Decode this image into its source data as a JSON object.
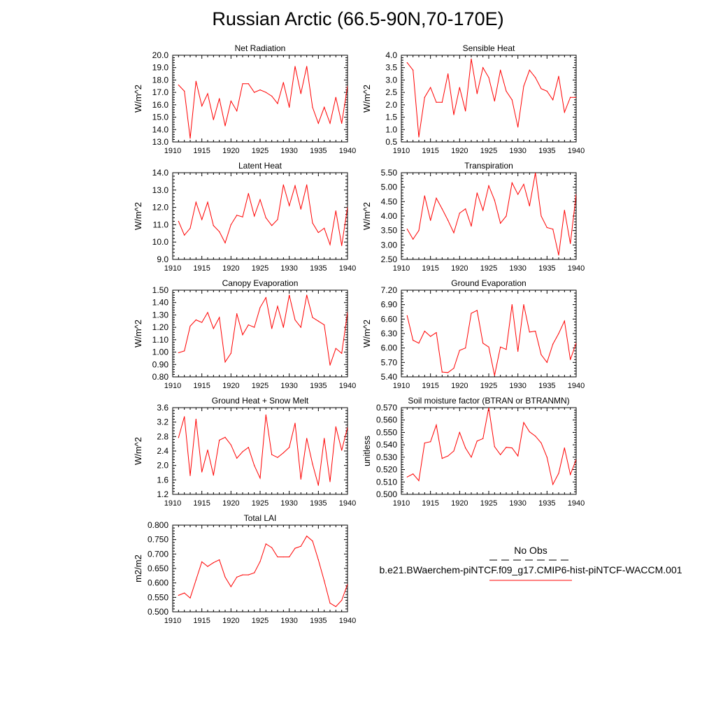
{
  "figure": {
    "title": "Russian Arctic (66.5-90N,70-170E)"
  },
  "legend": {
    "obs_label": "No Obs",
    "model_label": "b.e21.BWaerchem-piNTCF.f09_g17.CMIP6-hist-piNTCF-WACCM.001",
    "obs_color": "#000000",
    "model_color": "#ff0000"
  },
  "colors": {
    "series": "#ff0000",
    "axis": "#000000"
  },
  "chart_data": [
    {
      "type": "line",
      "title": "Net Radiation",
      "ylabel": "W/m^2",
      "xlim": [
        1910,
        1940
      ],
      "ylim": [
        13.0,
        20.0
      ],
      "xticks": [
        "1910",
        "1915",
        "1920",
        "1925",
        "1930",
        "1935",
        "1940"
      ],
      "yticks": [
        "13.0",
        "14.0",
        "15.0",
        "16.0",
        "17.0",
        "18.0",
        "19.0",
        "20.0"
      ],
      "grid": false,
      "x": [
        1911,
        1912,
        1913,
        1914,
        1915,
        1916,
        1917,
        1918,
        1919,
        1920,
        1921,
        1922,
        1923,
        1924,
        1925,
        1926,
        1927,
        1928,
        1929,
        1930,
        1931,
        1932,
        1933,
        1934,
        1935,
        1936,
        1937,
        1938,
        1939,
        1940
      ],
      "values": [
        17.6,
        17.1,
        13.3,
        17.9,
        15.9,
        16.9,
        14.8,
        16.5,
        14.3,
        16.3,
        15.5,
        17.7,
        17.7,
        17.0,
        17.2,
        17.0,
        16.7,
        16.1,
        17.8,
        15.8,
        19.1,
        16.9,
        19.1,
        15.8,
        14.5,
        15.8,
        14.5,
        16.6,
        14.5,
        17.5
      ]
    },
    {
      "type": "line",
      "title": "Sensible Heat",
      "ylabel": "W/m^2",
      "xlim": [
        1910,
        1940
      ],
      "ylim": [
        0.5,
        4.0
      ],
      "xticks": [
        "1910",
        "1915",
        "1920",
        "1925",
        "1930",
        "1935",
        "1940"
      ],
      "yticks": [
        "0.5",
        "1.0",
        "1.5",
        "2.0",
        "2.5",
        "3.0",
        "3.5",
        "4.0"
      ],
      "grid": false,
      "x": [
        1911,
        1912,
        1913,
        1914,
        1915,
        1916,
        1917,
        1918,
        1919,
        1920,
        1921,
        1922,
        1923,
        1924,
        1925,
        1926,
        1927,
        1928,
        1929,
        1930,
        1931,
        1932,
        1933,
        1934,
        1935,
        1936,
        1937,
        1938,
        1939,
        1940
      ],
      "values": [
        3.7,
        3.4,
        0.7,
        2.3,
        2.7,
        2.1,
        2.1,
        3.25,
        1.6,
        2.7,
        1.75,
        3.85,
        2.45,
        3.5,
        3.1,
        2.15,
        3.4,
        2.55,
        2.2,
        1.1,
        2.75,
        3.4,
        3.1,
        2.65,
        2.55,
        2.2,
        3.15,
        1.7,
        2.3,
        2.3
      ]
    },
    {
      "type": "line",
      "title": "Latent Heat",
      "ylabel": "W/m^2",
      "xlim": [
        1910,
        1940
      ],
      "ylim": [
        9.0,
        14.0
      ],
      "xticks": [
        "1910",
        "1915",
        "1920",
        "1925",
        "1930",
        "1935",
        "1940"
      ],
      "yticks": [
        "9.0",
        "10.0",
        "11.0",
        "12.0",
        "13.0",
        "14.0"
      ],
      "grid": false,
      "x": [
        1911,
        1912,
        1913,
        1914,
        1915,
        1916,
        1917,
        1918,
        1919,
        1920,
        1921,
        1922,
        1923,
        1924,
        1925,
        1926,
        1927,
        1928,
        1929,
        1930,
        1931,
        1932,
        1933,
        1934,
        1935,
        1936,
        1937,
        1938,
        1939,
        1940
      ],
      "values": [
        11.2,
        10.4,
        10.8,
        12.3,
        11.3,
        12.3,
        10.95,
        10.6,
        9.95,
        11.0,
        11.55,
        11.45,
        12.8,
        11.5,
        12.45,
        11.4,
        10.95,
        11.3,
        13.3,
        12.1,
        13.25,
        11.9,
        13.3,
        11.1,
        10.55,
        10.8,
        9.85,
        11.8,
        9.8,
        12.0
      ]
    },
    {
      "type": "line",
      "title": "Transpiration",
      "ylabel": "W/m^2",
      "xlim": [
        1910,
        1940
      ],
      "ylim": [
        2.5,
        5.5
      ],
      "xticks": [
        "1910",
        "1915",
        "1920",
        "1925",
        "1930",
        "1935",
        "1940"
      ],
      "yticks": [
        "2.50",
        "3.00",
        "3.50",
        "4.00",
        "4.50",
        "5.00",
        "5.50"
      ],
      "grid": false,
      "x": [
        1911,
        1912,
        1913,
        1914,
        1915,
        1916,
        1917,
        1918,
        1919,
        1920,
        1921,
        1922,
        1923,
        1924,
        1925,
        1926,
        1927,
        1928,
        1929,
        1930,
        1931,
        1932,
        1933,
        1934,
        1935,
        1936,
        1937,
        1938,
        1939,
        1940
      ],
      "values": [
        3.55,
        3.2,
        3.5,
        4.7,
        3.85,
        4.62,
        4.25,
        3.85,
        3.42,
        4.1,
        4.25,
        3.65,
        4.8,
        4.2,
        5.05,
        4.55,
        3.75,
        4.0,
        5.15,
        4.75,
        5.1,
        4.35,
        5.5,
        4.0,
        3.6,
        3.55,
        2.65,
        4.2,
        3.05,
        4.75
      ]
    },
    {
      "type": "line",
      "title": "Canopy Evaporation",
      "ylabel": "W/m^2",
      "xlim": [
        1910,
        1940
      ],
      "ylim": [
        0.8,
        1.5
      ],
      "xticks": [
        "1910",
        "1915",
        "1920",
        "1925",
        "1930",
        "1935",
        "1940"
      ],
      "yticks": [
        "0.80",
        "0.90",
        "1.00",
        "1.10",
        "1.20",
        "1.30",
        "1.40",
        "1.50"
      ],
      "grid": false,
      "x": [
        1911,
        1912,
        1913,
        1914,
        1915,
        1916,
        1917,
        1918,
        1919,
        1920,
        1921,
        1922,
        1923,
        1924,
        1925,
        1926,
        1927,
        1928,
        1929,
        1930,
        1931,
        1932,
        1933,
        1934,
        1935,
        1936,
        1937,
        1938,
        1939,
        1940
      ],
      "values": [
        0.995,
        1.01,
        1.21,
        1.26,
        1.24,
        1.32,
        1.19,
        1.28,
        0.92,
        0.99,
        1.31,
        1.14,
        1.22,
        1.2,
        1.36,
        1.44,
        1.19,
        1.37,
        1.2,
        1.46,
        1.26,
        1.2,
        1.46,
        1.28,
        1.25,
        1.22,
        0.895,
        1.03,
        0.99,
        1.32
      ]
    },
    {
      "type": "line",
      "title": "Ground Evaporation",
      "ylabel": "W/m^2",
      "xlim": [
        1910,
        1940
      ],
      "ylim": [
        5.4,
        7.2
      ],
      "xticks": [
        "1910",
        "1915",
        "1920",
        "1925",
        "1930",
        "1935",
        "1940"
      ],
      "yticks": [
        "5.40",
        "5.70",
        "6.00",
        "6.30",
        "6.60",
        "6.90",
        "7.20"
      ],
      "grid": false,
      "x": [
        1911,
        1912,
        1913,
        1914,
        1915,
        1916,
        1917,
        1918,
        1919,
        1920,
        1921,
        1922,
        1923,
        1924,
        1925,
        1926,
        1927,
        1928,
        1929,
        1930,
        1931,
        1932,
        1933,
        1934,
        1935,
        1936,
        1937,
        1938,
        1939,
        1940
      ],
      "values": [
        6.67,
        6.16,
        6.1,
        6.35,
        6.24,
        6.32,
        5.5,
        5.49,
        5.58,
        5.95,
        6.0,
        6.72,
        6.78,
        6.1,
        6.02,
        5.43,
        6.02,
        5.97,
        6.9,
        5.93,
        6.9,
        6.33,
        6.35,
        5.86,
        5.7,
        6.08,
        6.3,
        6.56,
        5.76,
        6.1
      ]
    },
    {
      "type": "line",
      "title": "Ground Heat + Snow Melt",
      "ylabel": "W/m^2",
      "xlim": [
        1910,
        1940
      ],
      "ylim": [
        1.2,
        3.6
      ],
      "xticks": [
        "1910",
        "1915",
        "1920",
        "1925",
        "1930",
        "1935",
        "1940"
      ],
      "yticks": [
        "1.2",
        "1.6",
        "2.0",
        "2.4",
        "2.8",
        "3.2",
        "3.6"
      ],
      "grid": false,
      "x": [
        1911,
        1912,
        1913,
        1914,
        1915,
        1916,
        1917,
        1918,
        1919,
        1920,
        1921,
        1922,
        1923,
        1924,
        1925,
        1926,
        1927,
        1928,
        1929,
        1930,
        1931,
        1932,
        1933,
        1934,
        1935,
        1936,
        1937,
        1938,
        1939,
        1940
      ],
      "values": [
        2.77,
        3.35,
        1.72,
        3.28,
        1.82,
        2.43,
        1.73,
        2.7,
        2.78,
        2.57,
        2.2,
        2.38,
        2.5,
        2.0,
        1.65,
        3.4,
        2.3,
        2.22,
        2.35,
        2.5,
        3.17,
        1.62,
        2.75,
        2.04,
        1.45,
        2.75,
        1.55,
        3.07,
        2.42,
        3.05
      ]
    },
    {
      "type": "line",
      "title": "Soil moisture factor (BTRAN or BTRANMN)",
      "ylabel": "unitless",
      "xlim": [
        1910,
        1940
      ],
      "ylim": [
        0.5,
        0.57
      ],
      "xticks": [
        "1910",
        "1915",
        "1920",
        "1925",
        "1930",
        "1935",
        "1940"
      ],
      "yticks": [
        "0.500",
        "0.510",
        "0.520",
        "0.530",
        "0.540",
        "0.550",
        "0.560",
        "0.570"
      ],
      "grid": false,
      "x": [
        1911,
        1912,
        1913,
        1914,
        1915,
        1916,
        1917,
        1918,
        1919,
        1920,
        1921,
        1922,
        1923,
        1924,
        1925,
        1926,
        1927,
        1928,
        1929,
        1930,
        1931,
        1932,
        1933,
        1934,
        1935,
        1936,
        1937,
        1938,
        1939,
        1940
      ],
      "values": [
        0.514,
        0.5165,
        0.511,
        0.5415,
        0.5425,
        0.556,
        0.529,
        0.531,
        0.535,
        0.55,
        0.5375,
        0.53,
        0.543,
        0.545,
        0.57,
        0.5385,
        0.532,
        0.538,
        0.5375,
        0.531,
        0.558,
        0.5505,
        0.547,
        0.5415,
        0.53,
        0.508,
        0.517,
        0.5375,
        0.516,
        0.528
      ]
    },
    {
      "type": "line",
      "title": "Total LAI",
      "ylabel": "m2/m2",
      "xlim": [
        1910,
        1940
      ],
      "ylim": [
        0.5,
        0.8
      ],
      "xticks": [
        "1910",
        "1915",
        "1920",
        "1925",
        "1930",
        "1935",
        "1940"
      ],
      "yticks": [
        "0.500",
        "0.550",
        "0.600",
        "0.650",
        "0.700",
        "0.750",
        "0.800"
      ],
      "grid": false,
      "x": [
        1911,
        1912,
        1913,
        1914,
        1915,
        1916,
        1917,
        1918,
        1919,
        1920,
        1921,
        1922,
        1923,
        1924,
        1925,
        1926,
        1927,
        1928,
        1929,
        1930,
        1931,
        1932,
        1933,
        1934,
        1935,
        1936,
        1937,
        1938,
        1939,
        1940
      ],
      "values": [
        0.557,
        0.565,
        0.548,
        0.61,
        0.673,
        0.657,
        0.67,
        0.68,
        0.62,
        0.587,
        0.62,
        0.628,
        0.628,
        0.635,
        0.674,
        0.735,
        0.722,
        0.69,
        0.69,
        0.69,
        0.72,
        0.727,
        0.762,
        0.745,
        0.68,
        0.607,
        0.53,
        0.518,
        0.54,
        0.595
      ]
    }
  ]
}
